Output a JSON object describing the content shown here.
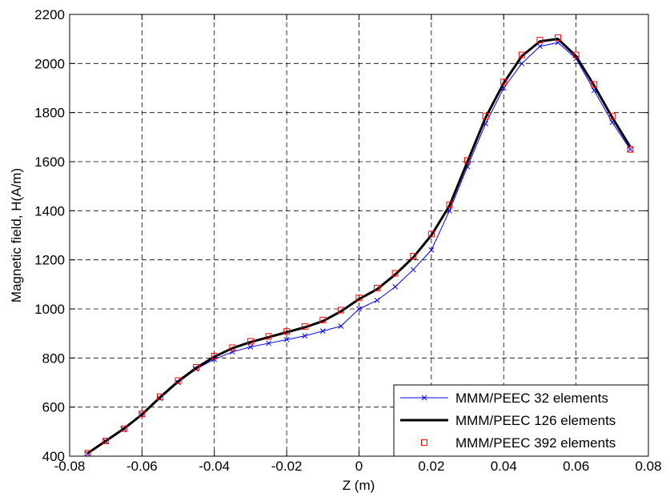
{
  "chart_data": {
    "type": "line",
    "title": "",
    "xlabel": "Z (m)",
    "ylabel": "Magnetic field, H(A/m)",
    "xlim": [
      -0.08,
      0.08
    ],
    "ylim": [
      400,
      2200
    ],
    "xticks": [
      -0.08,
      -0.06,
      -0.04,
      -0.02,
      0,
      0.02,
      0.04,
      0.06,
      0.08
    ],
    "xtick_labels": [
      "-0.08",
      "-0.06",
      "-0.04",
      "-0.02",
      "0",
      "0.02",
      "0.04",
      "0.06",
      "0.08"
    ],
    "yticks": [
      400,
      600,
      800,
      1000,
      1200,
      1400,
      1600,
      1800,
      2000,
      2200
    ],
    "ytick_labels": [
      "400",
      "600",
      "800",
      "1000",
      "1200",
      "1400",
      "1600",
      "1800",
      "2000",
      "2200"
    ],
    "grid": true,
    "legend_position": "bottom-right",
    "series": [
      {
        "name": "MMM/PEEC   32 elements",
        "color": "#0000ff",
        "marker": "x",
        "line": "thin",
        "x": [
          -0.075,
          -0.07,
          -0.065,
          -0.06,
          -0.055,
          -0.05,
          -0.045,
          -0.04,
          -0.035,
          -0.03,
          -0.025,
          -0.02,
          -0.015,
          -0.01,
          -0.005,
          0,
          0.005,
          0.01,
          0.015,
          0.02,
          0.025,
          0.03,
          0.035,
          0.04,
          0.045,
          0.05,
          0.055,
          0.06,
          0.065,
          0.07,
          0.075
        ],
        "values": [
          410,
          460,
          510,
          570,
          635,
          700,
          755,
          795,
          825,
          845,
          860,
          875,
          890,
          910,
          930,
          1000,
          1035,
          1090,
          1160,
          1240,
          1400,
          1580,
          1755,
          1900,
          2000,
          2070,
          2085,
          2020,
          1890,
          1760,
          1650
        ]
      },
      {
        "name": "MMM/PEEC 126 elements",
        "color": "#000000",
        "marker": "none",
        "line": "thick",
        "x": [
          -0.075,
          -0.07,
          -0.065,
          -0.06,
          -0.055,
          -0.05,
          -0.045,
          -0.04,
          -0.035,
          -0.03,
          -0.025,
          -0.02,
          -0.015,
          -0.01,
          -0.005,
          0,
          0.005,
          0.01,
          0.015,
          0.02,
          0.025,
          0.03,
          0.035,
          0.04,
          0.045,
          0.05,
          0.055,
          0.06,
          0.065,
          0.07,
          0.075
        ],
        "values": [
          412,
          462,
          512,
          570,
          640,
          705,
          760,
          805,
          840,
          865,
          885,
          905,
          925,
          950,
          990,
          1040,
          1080,
          1140,
          1210,
          1300,
          1420,
          1600,
          1780,
          1920,
          2030,
          2090,
          2100,
          2030,
          1910,
          1780,
          1660
        ]
      },
      {
        "name": "MMM/PEEC 392 elements",
        "color": "#ff0000",
        "marker": "square",
        "line": "none",
        "x": [
          -0.075,
          -0.07,
          -0.065,
          -0.06,
          -0.055,
          -0.05,
          -0.045,
          -0.04,
          -0.035,
          -0.03,
          -0.025,
          -0.02,
          -0.015,
          -0.01,
          -0.005,
          0,
          0.005,
          0.01,
          0.015,
          0.02,
          0.025,
          0.03,
          0.035,
          0.04,
          0.045,
          0.05,
          0.055,
          0.06,
          0.065,
          0.07,
          0.075
        ],
        "values": [
          412,
          462,
          512,
          572,
          642,
          708,
          762,
          808,
          842,
          868,
          888,
          908,
          928,
          955,
          995,
          1045,
          1085,
          1145,
          1215,
          1305,
          1425,
          1605,
          1785,
          1925,
          2035,
          2095,
          2105,
          2035,
          1915,
          1785,
          1650
        ]
      }
    ]
  }
}
